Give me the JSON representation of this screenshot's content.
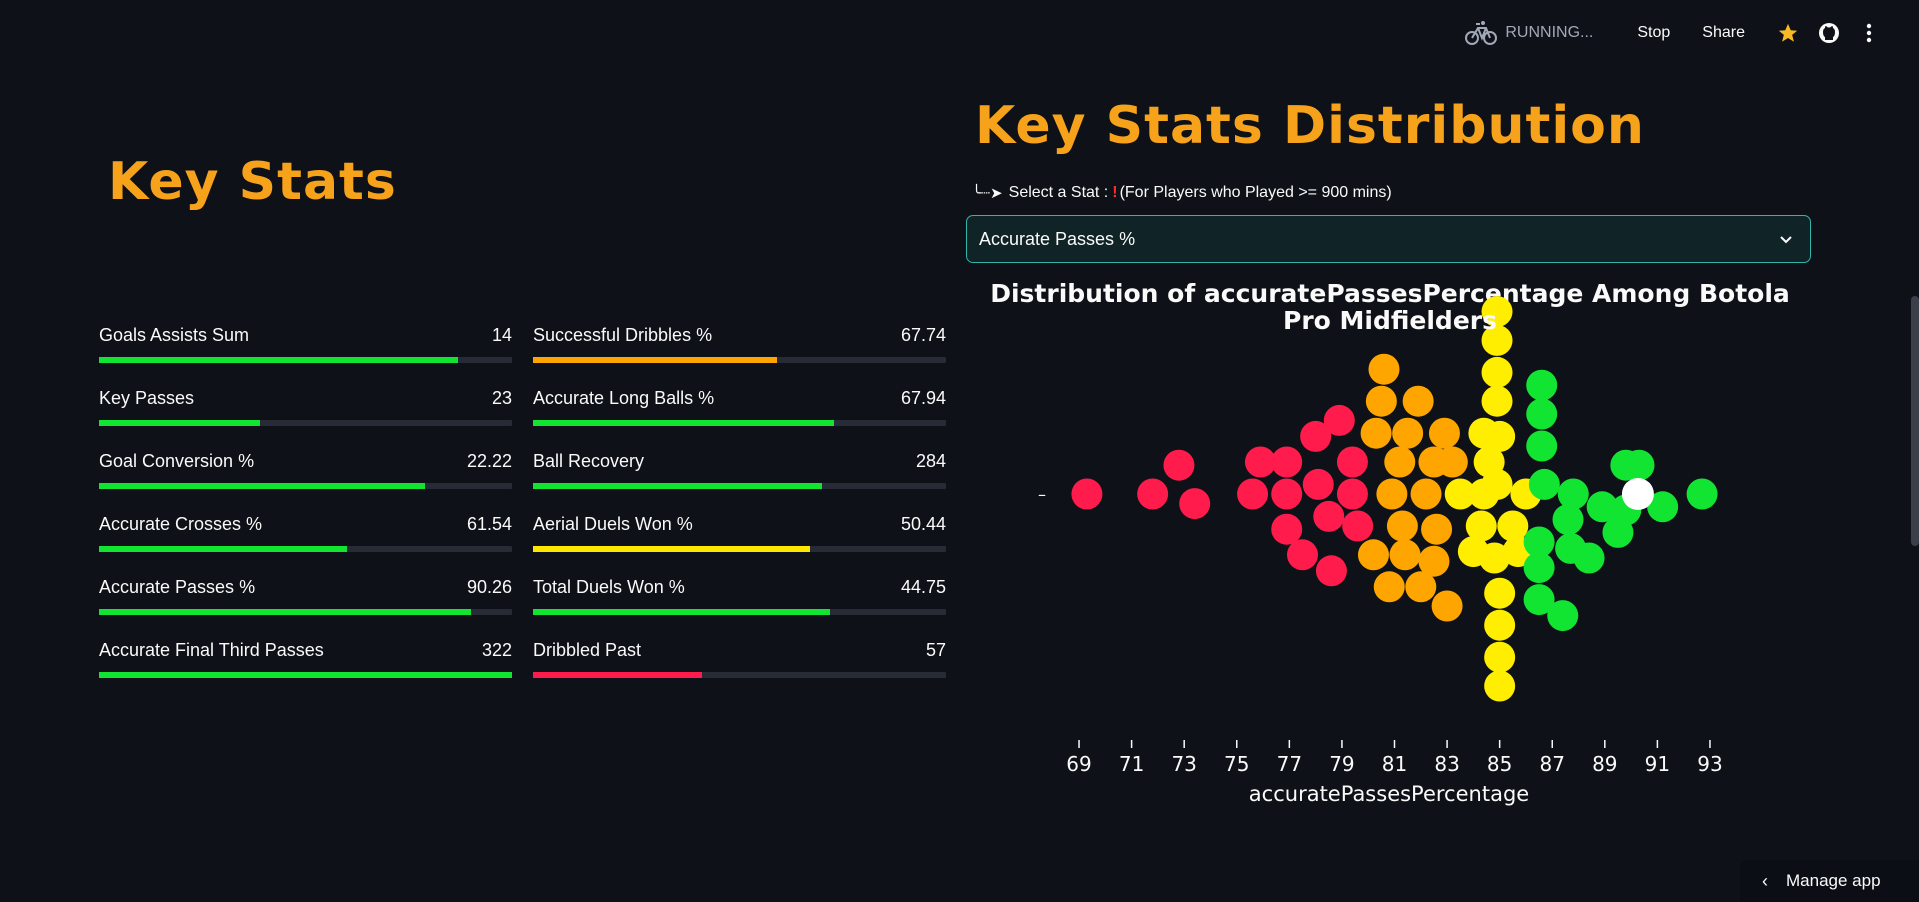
{
  "toolbar": {
    "running": "RUNNING...",
    "stop": "Stop",
    "share": "Share",
    "icons": [
      "bicycle-icon",
      "star-icon",
      "github-icon",
      "more-vertical-icon"
    ]
  },
  "left": {
    "title": "Key Stats",
    "stats": [
      {
        "label": "Goals Assists Sum",
        "value": "14",
        "fraction": 0.87,
        "color": "#11e532"
      },
      {
        "label": "Successful Dribbles %",
        "value": "67.74",
        "fraction": 0.59,
        "color": "#ffa500"
      },
      {
        "label": "Key Passes",
        "value": "23",
        "fraction": 0.39,
        "color": "#11e532"
      },
      {
        "label": "Accurate Long Balls %",
        "value": "67.94",
        "fraction": 0.73,
        "color": "#11e532"
      },
      {
        "label": "Goal Conversion %",
        "value": "22.22",
        "fraction": 0.79,
        "color": "#11e532"
      },
      {
        "label": "Ball Recovery",
        "value": "284",
        "fraction": 0.7,
        "color": "#11e532"
      },
      {
        "label": "Accurate Crosses %",
        "value": "61.54",
        "fraction": 0.6,
        "color": "#11e532"
      },
      {
        "label": "Aerial Duels Won %",
        "value": "50.44",
        "fraction": 0.67,
        "color": "#ffe600"
      },
      {
        "label": "Accurate Passes %",
        "value": "90.26",
        "fraction": 0.9,
        "color": "#11e532"
      },
      {
        "label": "Total Duels Won %",
        "value": "44.75",
        "fraction": 0.72,
        "color": "#11e532"
      },
      {
        "label": "Accurate Final Third Passes",
        "value": "322",
        "fraction": 1.0,
        "color": "#11e532"
      },
      {
        "label": "Dribbled Past",
        "value": "57",
        "fraction": 0.41,
        "color": "#ff1b4b"
      }
    ]
  },
  "right": {
    "title": "Key Stats Distribution",
    "select_prefix": "Select a Stat :",
    "select_exclaim": "!",
    "select_note": "(For Players who Played >= 900 mins)",
    "selected": "Accurate Passes %"
  },
  "chart_data": {
    "type": "scatter",
    "title_line1": "Distribution of accuratePassesPercentage Among Botola",
    "title_line2": "Pro Midfielders",
    "xlabel": "accuratePassesPercentage",
    "xlim": [
      68.2,
      93.8
    ],
    "xticks": [
      "69",
      "71",
      "73",
      "75",
      "77",
      "79",
      "81",
      "83",
      "85",
      "87",
      "89",
      "91",
      "93"
    ],
    "xtick_values": [
      69,
      71,
      73,
      75,
      77,
      79,
      81,
      83,
      85,
      87,
      89,
      91,
      93
    ],
    "y_tick_label": "–",
    "highlight": {
      "x": 90.26,
      "color": "#ffffff"
    },
    "colors": {
      "red": "#ff1b4b",
      "orange": "#ffa500",
      "yellow": "#ffee00",
      "green": "#11e532"
    },
    "series": [
      {
        "color": "red",
        "points": [
          [
            69.3,
            0
          ],
          [
            71.8,
            0
          ],
          [
            72.8,
            -0.9
          ],
          [
            73.4,
            0.3
          ],
          [
            75.6,
            0
          ],
          [
            76.9,
            0
          ],
          [
            78.1,
            -0.3
          ],
          [
            79.4,
            0
          ],
          [
            75.9,
            -1
          ],
          [
            76.9,
            -1
          ],
          [
            78.0,
            -1.8
          ],
          [
            79.4,
            -1
          ],
          [
            78.9,
            -2.3
          ],
          [
            76.9,
            1.1
          ],
          [
            78.5,
            0.7
          ],
          [
            79.6,
            1
          ],
          [
            77.5,
            1.9
          ],
          [
            78.6,
            2.4
          ]
        ]
      },
      {
        "color": "orange",
        "points": [
          [
            80.9,
            0
          ],
          [
            82.2,
            0
          ],
          [
            81.2,
            -1
          ],
          [
            82.5,
            -1
          ],
          [
            80.3,
            -1.9
          ],
          [
            81.5,
            -1.9
          ],
          [
            82.9,
            -1.9
          ],
          [
            83.2,
            -1
          ],
          [
            80.5,
            -2.9
          ],
          [
            81.9,
            -2.9
          ],
          [
            80.6,
            -3.9
          ],
          [
            80.2,
            1.9
          ],
          [
            81.4,
            1.9
          ],
          [
            82.5,
            2.1
          ],
          [
            81.3,
            1
          ],
          [
            82.6,
            1.1
          ],
          [
            80.8,
            2.9
          ],
          [
            82.0,
            2.9
          ],
          [
            83.0,
            3.5
          ]
        ]
      },
      {
        "color": "yellow",
        "points": [
          [
            83.5,
            0
          ],
          [
            84.4,
            0
          ],
          [
            84.9,
            -0.3
          ],
          [
            86.0,
            0
          ],
          [
            84.6,
            -1
          ],
          [
            85.0,
            -1.8
          ],
          [
            84.9,
            -2.9
          ],
          [
            84.9,
            -3.8
          ],
          [
            84.9,
            -4.8
          ],
          [
            84.9,
            -5.7
          ],
          [
            84.3,
            1
          ],
          [
            84.0,
            1.8
          ],
          [
            85.5,
            1
          ],
          [
            84.8,
            2
          ],
          [
            85.7,
            1.8
          ],
          [
            85.0,
            3.1
          ],
          [
            85.0,
            4.1
          ],
          [
            85.0,
            5.1
          ],
          [
            85.0,
            6.0
          ],
          [
            84.4,
            -1.9
          ]
        ]
      },
      {
        "color": "green",
        "points": [
          [
            86.7,
            -0.3
          ],
          [
            87.8,
            0
          ],
          [
            88.9,
            0.4
          ],
          [
            89.8,
            -0.9
          ],
          [
            89.5,
            1.2
          ],
          [
            87.6,
            0.8
          ],
          [
            87.7,
            1.7
          ],
          [
            88.4,
            2.0
          ],
          [
            89.8,
            0.5
          ],
          [
            91.2,
            0.4
          ],
          [
            92.7,
            0
          ],
          [
            86.6,
            -1.5
          ],
          [
            86.6,
            -2.5
          ],
          [
            86.6,
            -3.4
          ],
          [
            86.5,
            1.5
          ],
          [
            86.5,
            2.3
          ],
          [
            86.5,
            3.3
          ],
          [
            87.4,
            3.8
          ],
          [
            90.3,
            -0.9
          ]
        ]
      }
    ]
  },
  "manage_app": "Manage app"
}
